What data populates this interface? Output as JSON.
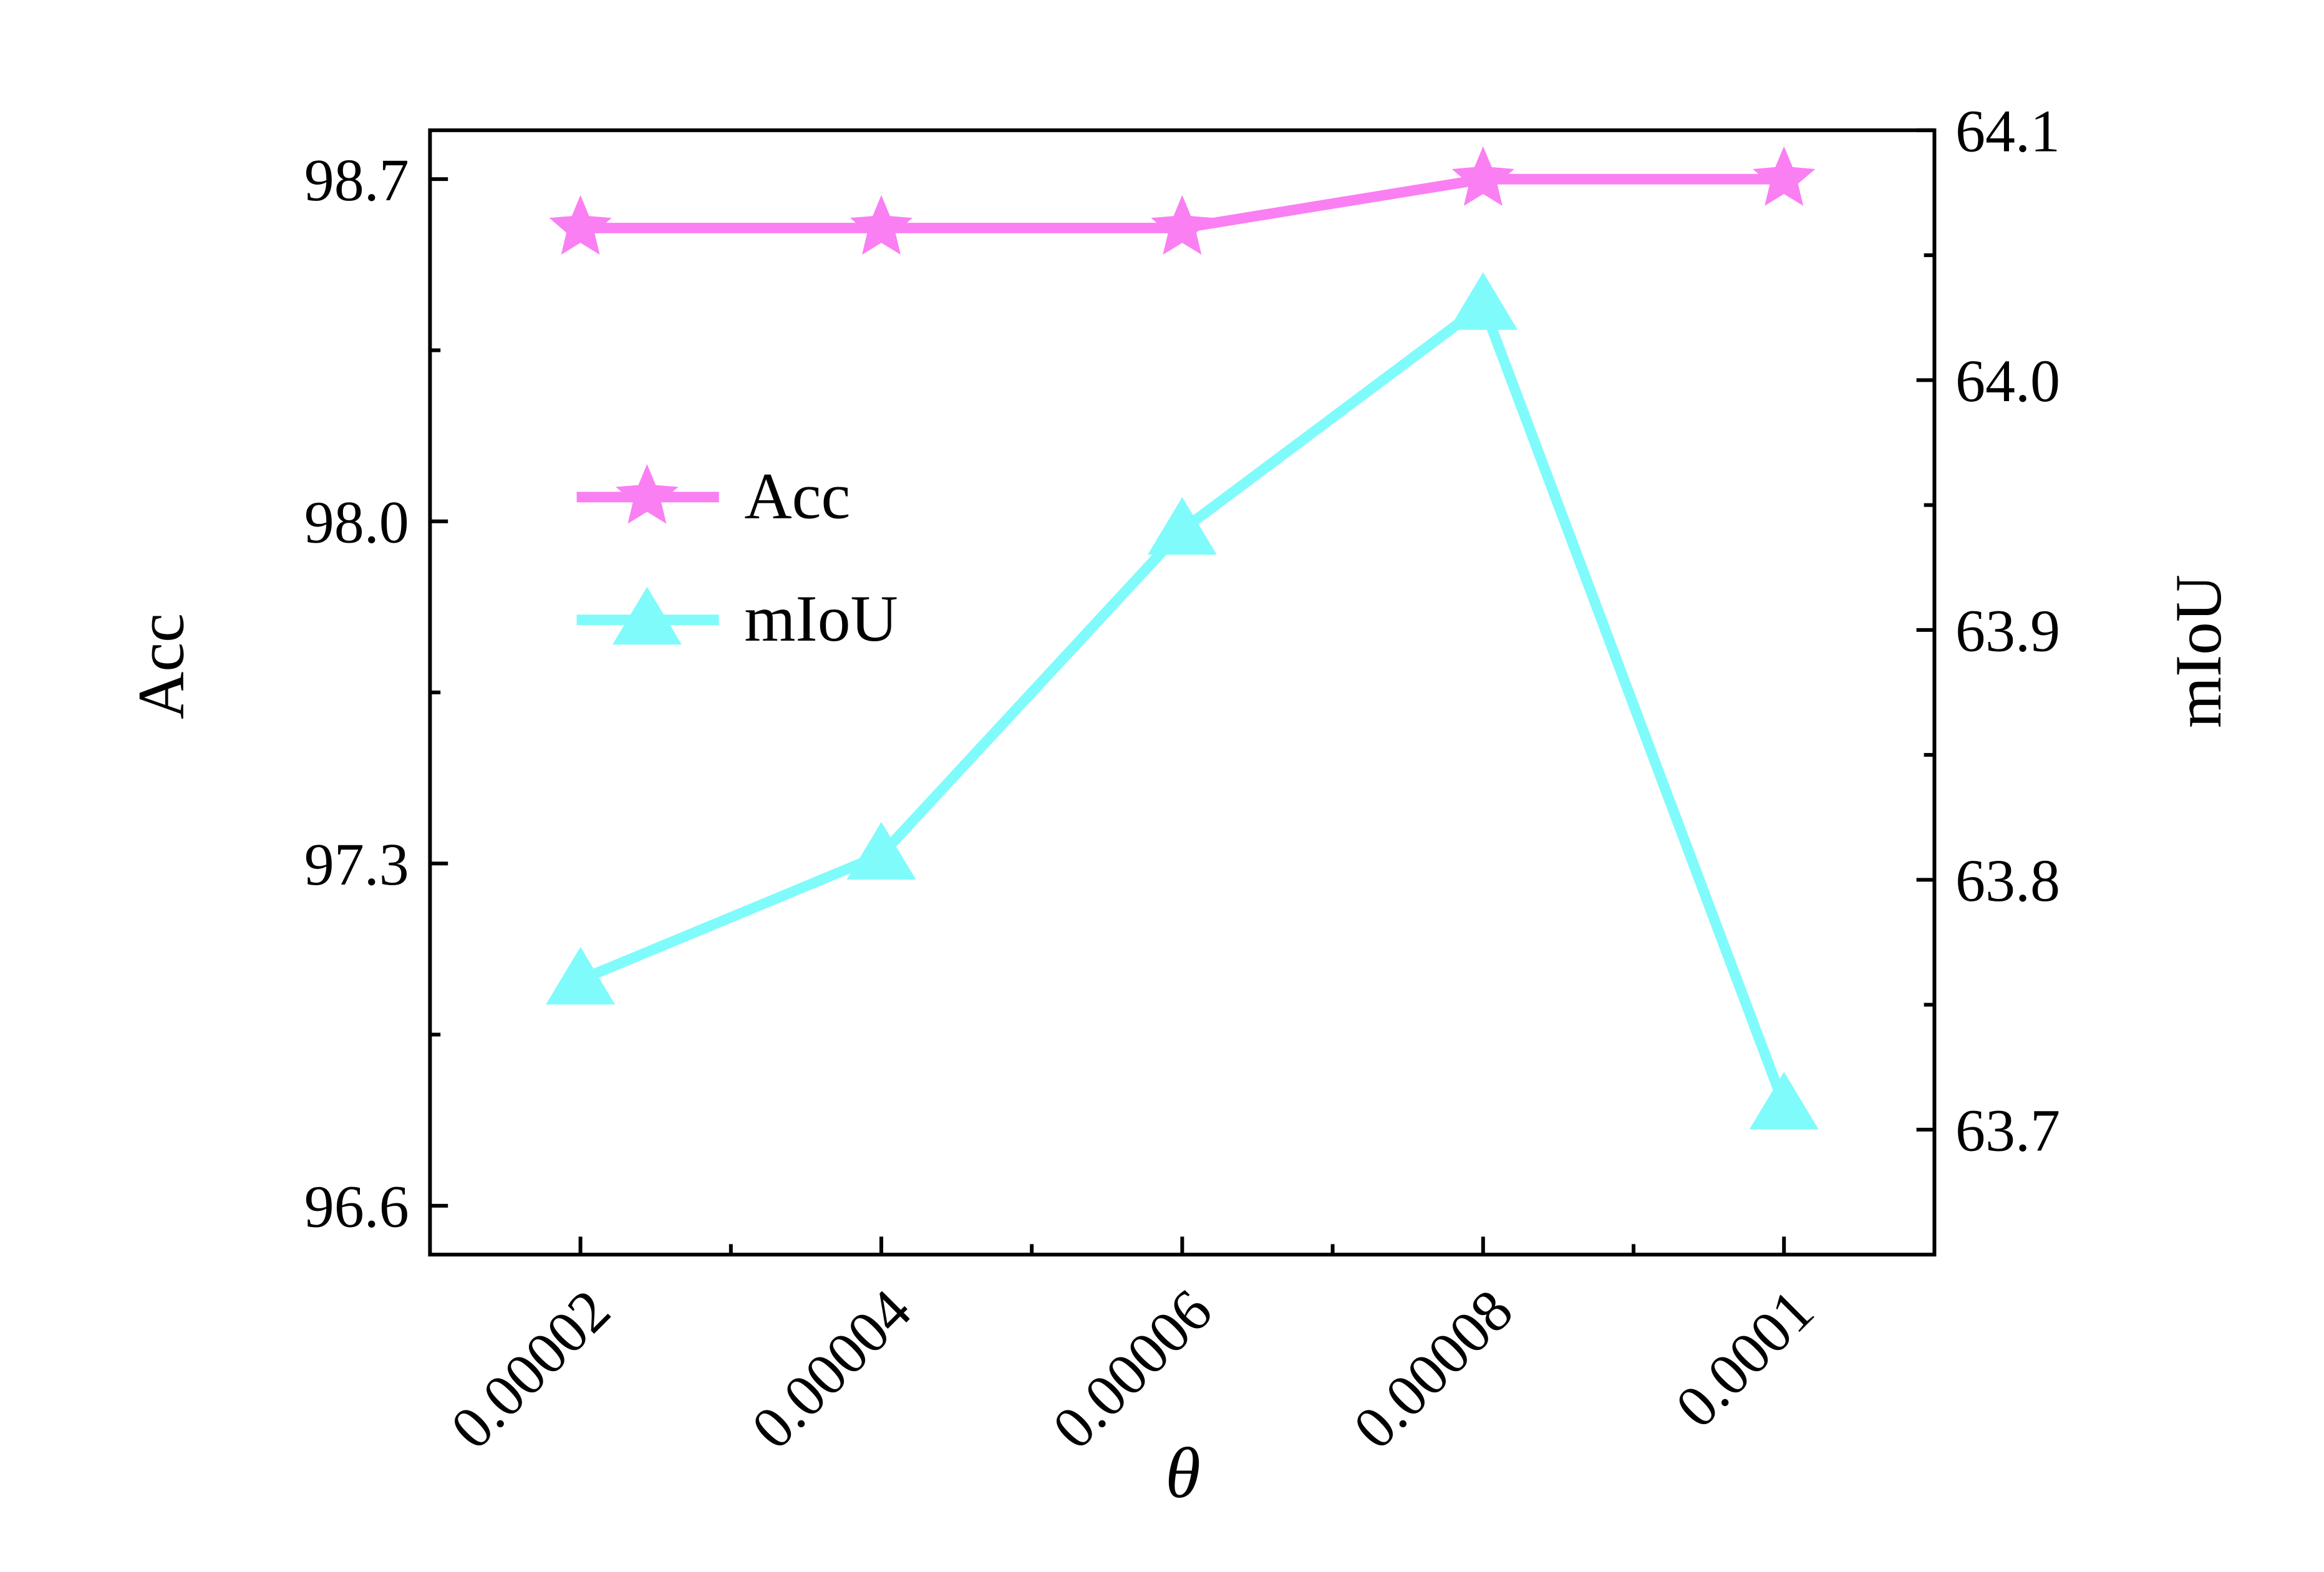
{
  "chart_data": {
    "type": "line",
    "x_label": "θ",
    "y_label": "Acc",
    "y2_label": "mIoU",
    "x": [
      2e-05,
      4e-05,
      6e-05,
      8e-05,
      0.0001
    ],
    "xlim": [
      1e-05,
      0.00011
    ],
    "xticks": [
      2e-05,
      4e-05,
      6e-05,
      8e-05,
      0.0001
    ],
    "ylim": [
      96.5,
      98.8
    ],
    "yticks": [
      {
        "value": 96.6,
        "label": "96.6"
      },
      {
        "value": 97.3,
        "label": "97.3"
      },
      {
        "value": 98,
        "label": "98.0"
      },
      {
        "value": 98.7,
        "label": "98.7"
      }
    ],
    "y2lim": [
      63.65,
      64.1
    ],
    "y2ticks": [
      63.7,
      63.8,
      63.9,
      {
        "value": 64,
        "label": "64.0"
      },
      64.1
    ],
    "legend": "upper left",
    "series": [
      {
        "name": "Acc",
        "color": "#fa7ff2",
        "marker": "star",
        "values": [
          98.6,
          98.6,
          98.6,
          98.7,
          98.7
        ]
      },
      {
        "name": "mIoU",
        "color": "#80fbfb",
        "marker": "triangle",
        "axis": "y2",
        "values": [
          63.76,
          63.81,
          63.94,
          64.03,
          63.71
        ]
      }
    ]
  }
}
